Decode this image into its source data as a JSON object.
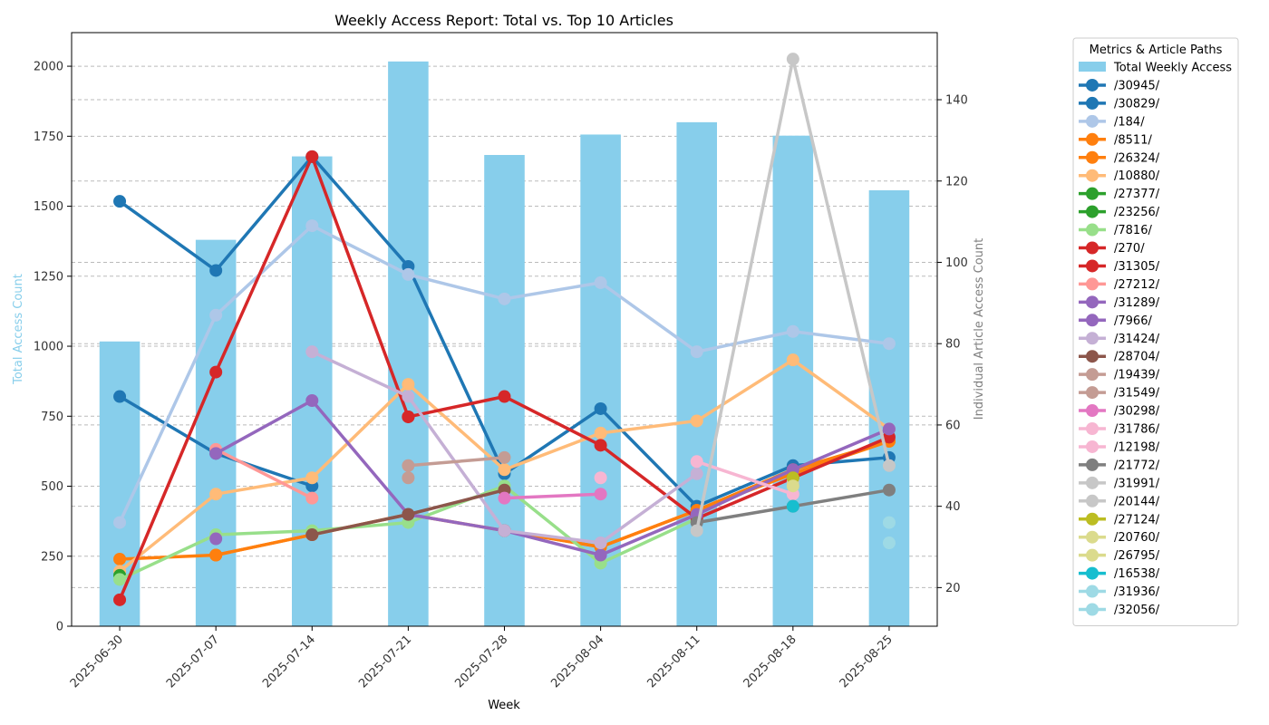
{
  "chart_data": {
    "type": "bar+line",
    "title": "Weekly Access Report: Total vs. Top 10 Articles",
    "xlabel": "Week",
    "ylabel_left": "Total Access Count",
    "ylabel_right": "Individual Article Access Count",
    "ylim_left": [
      0,
      2120
    ],
    "ylim_right": [
      10.5,
      156.5
    ],
    "yticks_left": [
      0,
      250,
      500,
      750,
      1000,
      1250,
      1500,
      1750,
      2000
    ],
    "yticks_right": [
      20,
      40,
      60,
      80,
      100,
      120,
      140
    ],
    "grid": true,
    "legend_title": "Metrics & Article Paths",
    "legend_position": "outside-right",
    "left_axis_color": "#87ceeb",
    "right_axis_color": "#808080",
    "categories": [
      "2025-06-30",
      "2025-07-07",
      "2025-07-14",
      "2025-07-21",
      "2025-07-28",
      "2025-08-04",
      "2025-08-11",
      "2025-08-18",
      "2025-08-25"
    ],
    "bar_series": {
      "name": "Total Weekly Access",
      "color": "#87ceeb",
      "values": [
        1017,
        1380,
        1678,
        2017,
        1683,
        1756,
        1800,
        1752,
        1557
      ]
    },
    "series": [
      {
        "name": "/30945/",
        "color": "#1f77b4",
        "values": [
          115,
          98,
          126,
          99,
          48,
          64,
          40,
          50,
          52
        ]
      },
      {
        "name": "/30829/",
        "color": "#1f77b4",
        "values": [
          67,
          53,
          45,
          null,
          null,
          null,
          null,
          null,
          null
        ]
      },
      {
        "name": "/184/",
        "color": "#aec7e8",
        "values": [
          36,
          87,
          109,
          97,
          91,
          95,
          78,
          83,
          80
        ]
      },
      {
        "name": "/8511/",
        "color": "#ff7f0e",
        "values": [
          27,
          28,
          33,
          null,
          34,
          30,
          39,
          48,
          56
        ]
      },
      {
        "name": "/26324/",
        "color": "#ff7f0e",
        "values": [
          null,
          28,
          33,
          38,
          34,
          30,
          39,
          49,
          56
        ]
      },
      {
        "name": "/10880/",
        "color": "#ffbb78",
        "values": [
          24,
          43,
          47,
          70,
          49,
          58,
          61,
          76,
          59
        ]
      },
      {
        "name": "/27377/",
        "color": "#2ca02c",
        "values": [
          23,
          null,
          null,
          null,
          null,
          null,
          null,
          null,
          null
        ]
      },
      {
        "name": "/23256/",
        "color": "#2ca02c",
        "values": [
          null,
          null,
          null,
          null,
          null,
          null,
          null,
          null,
          null
        ]
      },
      {
        "name": "/7816/",
        "color": "#98df8a",
        "values": [
          22,
          33,
          34,
          36,
          45,
          26,
          37,
          null,
          null
        ]
      },
      {
        "name": "/270/",
        "color": "#d62728",
        "values": [
          17,
          73,
          126,
          62,
          null,
          null,
          null,
          null,
          null
        ]
      },
      {
        "name": "/31305/",
        "color": "#d62728",
        "values": [
          null,
          null,
          null,
          62,
          67,
          55,
          37,
          47,
          57
        ]
      },
      {
        "name": "/27212/",
        "color": "#ff9896",
        "values": [
          null,
          54,
          42,
          null,
          null,
          null,
          null,
          null,
          null
        ]
      },
      {
        "name": "/31289/",
        "color": "#9467bd",
        "values": [
          null,
          53,
          66,
          38,
          34,
          28,
          38,
          49,
          59
        ]
      },
      {
        "name": "/7966/",
        "color": "#9467bd",
        "values": [
          null,
          32,
          null,
          null,
          null,
          null,
          null,
          null,
          null
        ]
      },
      {
        "name": "/31424/",
        "color": "#c5b0d5",
        "values": [
          null,
          null,
          78,
          67,
          34,
          31,
          48,
          null,
          null
        ]
      },
      {
        "name": "/28704/",
        "color": "#8c564b",
        "values": [
          null,
          null,
          33,
          38,
          44,
          null,
          null,
          null,
          null
        ]
      },
      {
        "name": "/19439/",
        "color": "#c49c94",
        "values": [
          null,
          null,
          null,
          50,
          52,
          null,
          null,
          null,
          null
        ]
      },
      {
        "name": "/31549/",
        "color": "#c49c94",
        "values": [
          null,
          null,
          null,
          47,
          null,
          null,
          null,
          null,
          null
        ]
      },
      {
        "name": "/30298/",
        "color": "#e377c2",
        "values": [
          null,
          null,
          null,
          null,
          42,
          43,
          null,
          null,
          null
        ]
      },
      {
        "name": "/31786/",
        "color": "#f7b6d2",
        "values": [
          null,
          null,
          null,
          null,
          null,
          47,
          null,
          null,
          null
        ]
      },
      {
        "name": "/12198/",
        "color": "#f7b6d2",
        "values": [
          null,
          null,
          null,
          null,
          null,
          null,
          51,
          43,
          null
        ]
      },
      {
        "name": "/21772/",
        "color": "#7f7f7f",
        "values": [
          null,
          null,
          null,
          null,
          null,
          null,
          36,
          40,
          44
        ]
      },
      {
        "name": "/31991/",
        "color": "#c7c7c7",
        "values": [
          null,
          null,
          null,
          null,
          null,
          null,
          34,
          150,
          50
        ]
      },
      {
        "name": "/20144/",
        "color": "#c7c7c7",
        "values": [
          null,
          null,
          null,
          null,
          null,
          null,
          null,
          46,
          null
        ]
      },
      {
        "name": "/27124/",
        "color": "#bcbd22",
        "values": [
          null,
          null,
          null,
          null,
          null,
          null,
          null,
          47,
          null
        ]
      },
      {
        "name": "/20760/",
        "color": "#dbdb8d",
        "values": [
          null,
          null,
          null,
          null,
          null,
          null,
          null,
          45,
          null
        ]
      },
      {
        "name": "/26795/",
        "color": "#dbdb8d",
        "values": [
          null,
          null,
          null,
          null,
          null,
          null,
          null,
          null,
          null
        ]
      },
      {
        "name": "/16538/",
        "color": "#17becf",
        "values": [
          null,
          null,
          null,
          null,
          null,
          null,
          null,
          40,
          null
        ]
      },
      {
        "name": "/31936/",
        "color": "#9edae5",
        "values": [
          null,
          null,
          null,
          null,
          null,
          null,
          null,
          null,
          36
        ]
      },
      {
        "name": "/32056/",
        "color": "#9edae5",
        "values": [
          null,
          null,
          null,
          null,
          null,
          null,
          null,
          null,
          31
        ]
      }
    ]
  }
}
